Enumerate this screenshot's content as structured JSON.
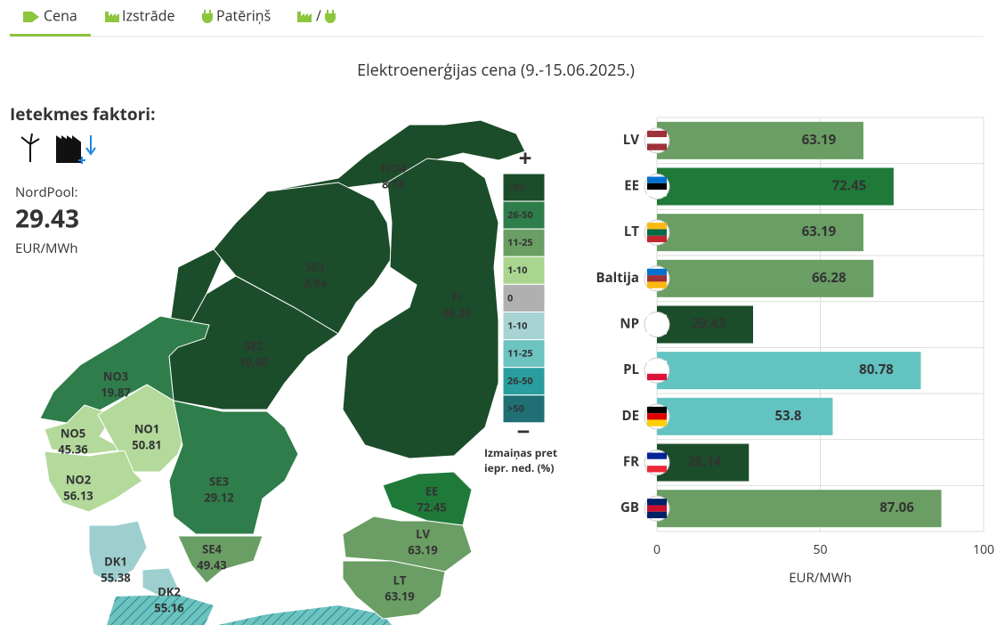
{
  "tabs": [
    "Cena",
    "Izstrāde",
    "Patēriņš",
    "/"
  ],
  "title": "Elektroenerģijas cena (9.-15.06.2025.)",
  "factors": {
    "title": "Ietekmes faktori:",
    "label": "NordPool:",
    "value": 29.43,
    "unit": "EUR/MWh"
  },
  "map": {
    "regions": [
      {
        "name": "NO4",
        "value": 8.18,
        "color": "#1b4d2a"
      },
      {
        "name": "SE1",
        "value": 3.94,
        "color": "#1b4d2a"
      },
      {
        "name": "FI",
        "value": 46.25,
        "color": "#1b4d2a"
      },
      {
        "name": "SE2",
        "value": 10.68,
        "color": "#1b4d2a"
      },
      {
        "name": "NO3",
        "value": 19.87,
        "color": "#2e7d4a"
      },
      {
        "name": "NO5",
        "value": 45.36,
        "color": "#b3d99b"
      },
      {
        "name": "NO1",
        "value": 50.81,
        "color": "#b3d99b"
      },
      {
        "name": "NO2",
        "value": 56.13,
        "color": "#b3d99b"
      },
      {
        "name": "SE3",
        "value": 29.12,
        "color": "#2e7d4a"
      },
      {
        "name": "SE4",
        "value": 49.43,
        "color": "#6a9e64"
      },
      {
        "name": "DK1",
        "value": 55.38,
        "color": "#9ecfcf"
      },
      {
        "name": "DK2",
        "value": 55.16,
        "color": "#9ecfcf"
      },
      {
        "name": "EE",
        "value": 72.45,
        "color": "#1f7a3a"
      },
      {
        "name": "LV",
        "value": 63.19,
        "color": "#6a9e64"
      },
      {
        "name": "LT",
        "value": 63.19,
        "color": "#6a9e64"
      }
    ],
    "legend": {
      "plus": "+",
      "minus": "−",
      "items": [
        {
          "label": ">50",
          "color": "#1b4d2a"
        },
        {
          "label": "26-50",
          "color": "#2e7d4a"
        },
        {
          "label": "11-25",
          "color": "#6a9e64"
        },
        {
          "label": "1-10",
          "color": "#a9d58f"
        },
        {
          "label": "0",
          "color": "#b0b0b0"
        },
        {
          "label": "1-10",
          "color": "#a7d3d3"
        },
        {
          "label": "11-25",
          "color": "#6cc3c0"
        },
        {
          "label": "26-50",
          "color": "#2a9d9e"
        },
        {
          "label": ">50",
          "color": "#1f6f75"
        }
      ],
      "caption": [
        "Izmaiņas pret",
        "iepr. ned. (%)"
      ]
    }
  },
  "chart_data": {
    "type": "bar",
    "orientation": "horizontal",
    "categories": [
      "LV",
      "EE",
      "LT",
      "Baltija",
      "NP",
      "PL",
      "DE",
      "FR",
      "GB"
    ],
    "values": [
      63.19,
      72.45,
      63.19,
      66.28,
      29.43,
      80.78,
      53.8,
      28.14,
      87.06
    ],
    "colors": [
      "#6a9e64",
      "#1f7a3a",
      "#6a9e64",
      "#6a9e64",
      "#1b4d2a",
      "#62c3c1",
      "#62c3c1",
      "#1b4d2a",
      "#6a9e64"
    ],
    "xlim": [
      0,
      100
    ],
    "xticks": [
      0,
      50,
      100
    ],
    "xlabel": "EUR/MWh",
    "grid": true
  }
}
